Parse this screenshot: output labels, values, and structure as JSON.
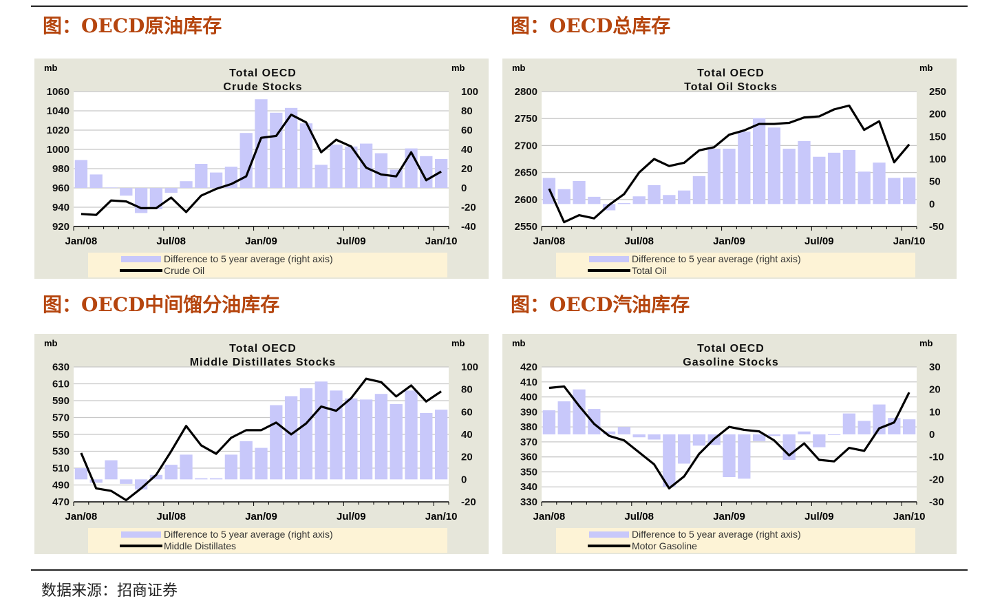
{
  "titles": [
    "图：OECD原油库存",
    "图：OECD总库存",
    "图：OECD中间馏分油库存",
    "图：OECD汽油库存"
  ],
  "source": "数据来源：招商证券",
  "colors": {
    "bar": "#c8c8fa",
    "line": "#000000",
    "panel_bg": "#e6e6da",
    "legend_bg": "#fdf3d6",
    "title": "#b5450e"
  },
  "chart_data": [
    {
      "type": "bar+line",
      "title": "Total OECD\nCrude Stocks",
      "ylabel_left": "mb",
      "ylabel_right": "mb",
      "x_ticks": [
        "Jan/08",
        "Jul/08",
        "Jan/09",
        "Jul/09",
        "Jan/10"
      ],
      "left_ticks": [
        920,
        940,
        960,
        980,
        1000,
        1020,
        1040,
        1060
      ],
      "right_ticks": [
        -40,
        -20,
        0,
        20,
        40,
        60,
        80,
        100
      ],
      "ylim_left": [
        920,
        1060
      ],
      "ylim_right": [
        -40,
        100
      ],
      "grid": true,
      "series": [
        {
          "name": "Difference to 5 year average (right axis)",
          "axis": "right",
          "kind": "bar",
          "values": [
            29,
            14,
            0.5,
            -8,
            -26,
            -22,
            -5,
            7,
            25,
            16,
            22,
            57,
            92,
            78,
            83,
            67,
            24,
            45,
            43,
            46,
            36,
            19,
            41,
            33,
            30
          ]
        },
        {
          "name": "Crude Oil",
          "axis": "left",
          "kind": "line",
          "values": [
            933,
            932,
            947,
            946,
            939,
            939,
            950,
            935,
            952,
            959,
            964,
            972,
            1012,
            1014,
            1036,
            1028,
            997,
            1010,
            1003,
            981,
            974,
            972,
            997,
            968,
            977
          ]
        }
      ]
    },
    {
      "type": "bar+line",
      "title": "Total OECD\nTotal Oil Stocks",
      "ylabel_left": "mb",
      "ylabel_right": "mb",
      "x_ticks": [
        "Jan/08",
        "Jul/08",
        "Jan/09",
        "Jul/09",
        "Jan/10"
      ],
      "left_ticks": [
        2550,
        2600,
        2650,
        2700,
        2750,
        2800
      ],
      "right_ticks": [
        -50,
        0,
        50,
        100,
        150,
        200,
        250
      ],
      "ylim_left": [
        2550,
        2800
      ],
      "ylim_right": [
        -50,
        250
      ],
      "grid": true,
      "series": [
        {
          "name": "Difference to 5 year average (right axis)",
          "axis": "right",
          "kind": "bar",
          "values": [
            58,
            33,
            51,
            16,
            -14,
            2,
            17,
            42,
            20,
            30,
            62,
            123,
            123,
            161,
            191,
            170,
            123,
            140,
            105,
            114,
            120,
            72,
            92,
            58,
            59
          ]
        },
        {
          "name": "Total Oil",
          "axis": "left",
          "kind": "line",
          "values": [
            2620,
            2558,
            2571,
            2565,
            2590,
            2610,
            2650,
            2675,
            2662,
            2668,
            2691,
            2697,
            2720,
            2728,
            2740,
            2740,
            2742,
            2752,
            2754,
            2767,
            2774,
            2729,
            2745,
            2669,
            2702
          ]
        }
      ]
    },
    {
      "type": "bar+line",
      "title": "Total OECD\nMiddle Distillates Stocks",
      "ylabel_left": "mb",
      "ylabel_right": "mb",
      "x_ticks": [
        "Jan/08",
        "Jul/08",
        "Jan/09",
        "Jul/09",
        "Jan/10"
      ],
      "left_ticks": [
        470,
        490,
        510,
        530,
        550,
        570,
        590,
        610,
        630
      ],
      "right_ticks": [
        -20,
        0,
        20,
        40,
        60,
        80,
        100
      ],
      "ylim_left": [
        470,
        630
      ],
      "ylim_right": [
        -20,
        100
      ],
      "grid": true,
      "series": [
        {
          "name": "Difference to 5 year average (right axis)",
          "axis": "right",
          "kind": "bar",
          "values": [
            10,
            -3,
            17,
            -4,
            -9,
            4,
            13,
            22,
            1,
            1,
            22,
            34,
            28,
            66,
            74,
            81,
            87,
            79,
            72,
            71,
            76,
            67,
            79,
            59,
            62
          ]
        },
        {
          "name": "Middle Distillates",
          "axis": "left",
          "kind": "line",
          "values": [
            528,
            486,
            483,
            472,
            486,
            502,
            530,
            560,
            537,
            527,
            546,
            555,
            555,
            564,
            550,
            563,
            583,
            578,
            593,
            616,
            612,
            595,
            608,
            589,
            601
          ]
        }
      ]
    },
    {
      "type": "bar+line",
      "title": "Total OECD\nGasoline Stocks",
      "ylabel_left": "mb",
      "ylabel_right": "mb",
      "x_ticks": [
        "Jan/08",
        "Jul/08",
        "Jan/09",
        "Jul/09",
        "Jan/10"
      ],
      "left_ticks": [
        330,
        340,
        350,
        360,
        370,
        380,
        390,
        400,
        410,
        420
      ],
      "right_ticks": [
        -30,
        -20,
        -10,
        0,
        10,
        20,
        30
      ],
      "ylim_left": [
        330,
        420
      ],
      "ylim_right": [
        -30,
        30
      ],
      "grid": true,
      "series": [
        {
          "name": "Difference to 5 year average (right axis)",
          "axis": "right",
          "kind": "bar",
          "values": [
            10.7,
            14.7,
            20,
            11.3,
            1.3,
            3.3,
            -1.3,
            -2.3,
            -23.3,
            -13,
            -5,
            -4.7,
            -19,
            -19.7,
            -3,
            -0.7,
            -11.3,
            1.3,
            -5.7,
            -0.3,
            9.3,
            6,
            13.3,
            7.3,
            6.7
          ]
        },
        {
          "name": "Motor Gasoline",
          "axis": "left",
          "kind": "line",
          "values": [
            406,
            407,
            394,
            382,
            374,
            371,
            363,
            355,
            339,
            347,
            362,
            372,
            380,
            378,
            377,
            371,
            361,
            369,
            358,
            357,
            366,
            364,
            379,
            383,
            403
          ]
        }
      ]
    }
  ]
}
